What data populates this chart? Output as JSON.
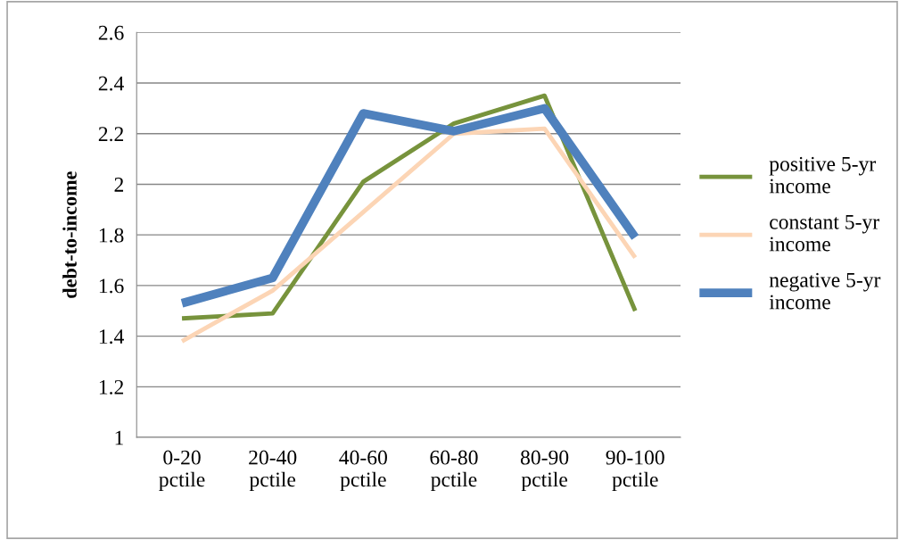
{
  "chart_data": {
    "type": "line",
    "ylabel": "debt-to-income",
    "categories": [
      "0-20\npctile",
      "20-40\npctile",
      "40-60\npctile",
      "60-80\npctile",
      "80-90\npctile",
      "90-100\npctile"
    ],
    "ylim": [
      1,
      2.6
    ],
    "yticks": [
      1,
      1.2,
      1.4,
      1.6,
      1.8,
      2,
      2.2,
      2.4,
      2.6
    ],
    "grid": "y",
    "legend": "right",
    "marker": "none",
    "line_style": "solid",
    "series": [
      {
        "name": "positive 5-yr\nincome",
        "color": "#77933c",
        "values": [
          1.47,
          1.49,
          2.01,
          2.24,
          2.35,
          1.5
        ]
      },
      {
        "name": "constant 5-yr\nincome",
        "color": "#fcd5b5",
        "values": [
          1.38,
          1.58,
          1.89,
          2.2,
          2.22,
          1.71
        ]
      },
      {
        "name": "negative 5-yr\nincome",
        "color": "#4f81bd",
        "values": [
          1.53,
          1.63,
          2.28,
          2.21,
          2.3,
          1.79
        ]
      }
    ]
  }
}
